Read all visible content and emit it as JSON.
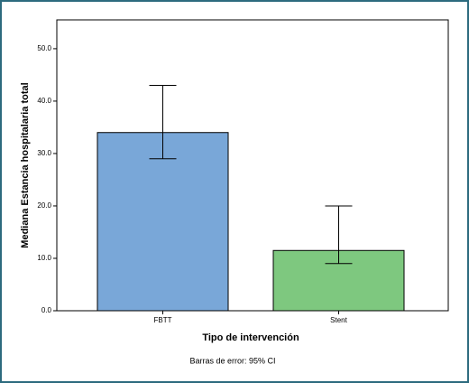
{
  "chart_data": {
    "type": "bar",
    "x_label": "Tipo de intervención",
    "y_label": "Mediana Estancia hospitalaria total",
    "note": "Barras de error: 95% CI",
    "categories": [
      "FBTT",
      "Stent"
    ],
    "values": [
      34,
      11.5
    ],
    "ci_low": [
      29,
      9
    ],
    "ci_high": [
      43,
      20
    ],
    "colors": [
      "#79a7d8",
      "#7ec87f"
    ],
    "ylim": [
      0,
      55.5
    ],
    "yticks": [
      {
        "value": 0,
        "label": "0.0"
      },
      {
        "value": 10,
        "label": "10.0"
      },
      {
        "value": 20,
        "label": "20.0"
      },
      {
        "value": 30,
        "label": "30.0"
      },
      {
        "value": 40,
        "label": "40.0"
      },
      {
        "value": 50,
        "label": "50.0"
      }
    ]
  }
}
